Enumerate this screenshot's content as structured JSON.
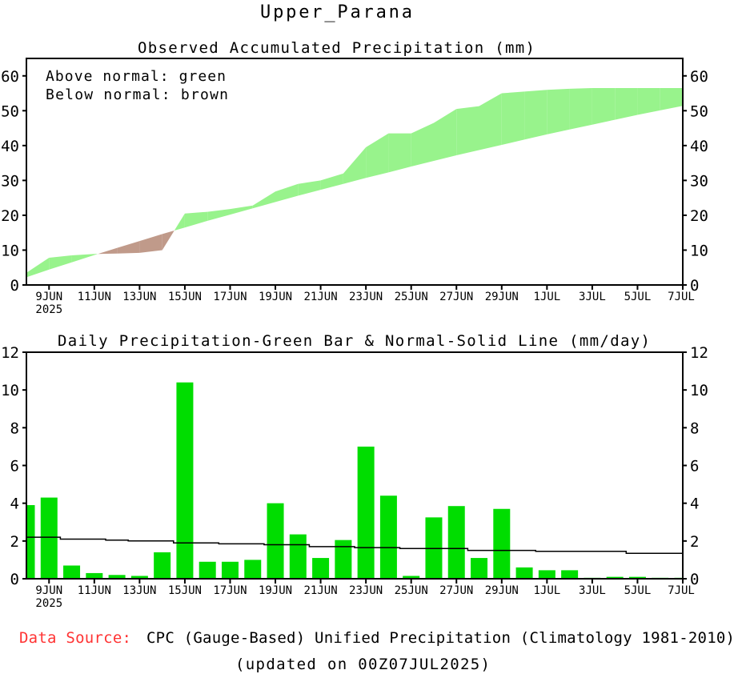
{
  "title": "Upper_Parana",
  "legend": {
    "above": "Above normal: green",
    "below": "Below normal: brown"
  },
  "footer": {
    "source_label": "Data Source:",
    "source_text": "CPC (Gauge-Based) Unified Precipitation (Climatology 1981-2010)",
    "updated": "(updated on 00Z07JUL2025)"
  },
  "colors": {
    "bar": "#00dd00",
    "above": "#98f38c",
    "below": "#c09a8a",
    "normal": "#000000",
    "source_label": "#ff3333"
  },
  "chart_data": [
    {
      "type": "area",
      "title": "Observed Accumulated Precipitation (mm)",
      "xlabel": "",
      "ylabel": "",
      "ylim": [
        0,
        65
      ],
      "yticks": [
        0,
        10,
        20,
        30,
        40,
        50,
        60
      ],
      "x": [
        "8JUN",
        "9JUN",
        "10JUN",
        "11JUN",
        "12JUN",
        "13JUN",
        "14JUN",
        "15JUN",
        "16JUN",
        "17JUN",
        "18JUN",
        "19JUN",
        "20JUN",
        "21JUN",
        "22JUN",
        "23JUN",
        "24JUN",
        "25JUN",
        "26JUN",
        "27JUN",
        "28JUN",
        "29JUN",
        "30JUN",
        "1JUL",
        "2JUL",
        "3JUL",
        "4JUL",
        "5JUL",
        "6JUL",
        "7JUL"
      ],
      "xtick_labels": [
        "9JUN",
        "11JUN",
        "13JUN",
        "15JUN",
        "17JUN",
        "19JUN",
        "21JUN",
        "23JUN",
        "25JUN",
        "27JUN",
        "29JUN",
        "1JUL",
        "3JUL",
        "5JUL",
        "7JUL"
      ],
      "xtick_sublabel": "2025",
      "series": [
        {
          "name": "Observed",
          "values": [
            3.5,
            7.8,
            8.5,
            8.9,
            9.0,
            9.2,
            10.0,
            20.5,
            21.0,
            21.8,
            22.8,
            26.8,
            29.0,
            30.0,
            32.0,
            39.5,
            43.5,
            43.5,
            46.5,
            50.5,
            51.3,
            55.0,
            55.5,
            56.0,
            56.3,
            56.5,
            56.5,
            56.5,
            56.5,
            56.5
          ]
        },
        {
          "name": "Normal",
          "values": [
            2.2,
            4.4,
            6.5,
            8.6,
            10.6,
            12.6,
            14.6,
            16.5,
            18.4,
            20.2,
            22.0,
            23.8,
            25.6,
            27.3,
            29.0,
            30.7,
            32.3,
            34.0,
            35.6,
            37.2,
            38.7,
            40.2,
            41.7,
            43.2,
            44.6,
            46.0,
            47.4,
            48.8,
            50.1,
            51.4
          ]
        }
      ]
    },
    {
      "type": "bar",
      "title": "Daily Precipitation-Green Bar & Normal-Solid Line (mm/day)",
      "xlabel": "",
      "ylabel": "",
      "ylim": [
        0,
        12
      ],
      "yticks": [
        0,
        2,
        4,
        6,
        8,
        10,
        12
      ],
      "series": [
        {
          "name": "Daily Precipitation",
          "type": "bar",
          "values": [
            3.9,
            4.3,
            0.7,
            0.3,
            0.2,
            0.15,
            1.4,
            10.4,
            0.9,
            0.9,
            1.0,
            4.0,
            2.35,
            1.1,
            2.05,
            7.0,
            4.4,
            0.15,
            3.25,
            3.85,
            1.1,
            3.7,
            0.6,
            0.45,
            0.45,
            0.05,
            0.1,
            0.1,
            0.05,
            0.05
          ]
        },
        {
          "name": "Normal",
          "type": "line",
          "values": [
            2.2,
            2.2,
            2.1,
            2.1,
            2.05,
            2.0,
            2.0,
            1.9,
            1.9,
            1.85,
            1.85,
            1.8,
            1.8,
            1.7,
            1.7,
            1.65,
            1.65,
            1.6,
            1.6,
            1.6,
            1.5,
            1.5,
            1.5,
            1.45,
            1.45,
            1.45,
            1.45,
            1.35,
            1.35,
            1.35
          ]
        }
      ]
    }
  ]
}
